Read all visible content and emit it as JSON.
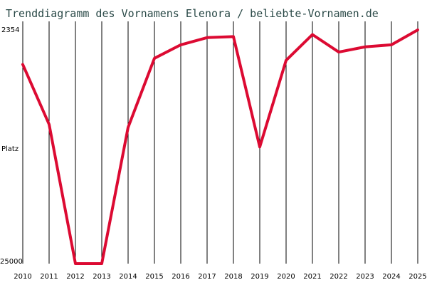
{
  "chart_data": {
    "type": "line",
    "title": "Trenddiagramm des Vornamens Elenora / beliebte-Vornamen.de",
    "ylabel": "Platz",
    "xlabel": "",
    "y_axis": {
      "inverted": true,
      "top_label": "2354",
      "bottom_label": "25000",
      "scale_note": "rank"
    },
    "x": [
      "2010",
      "2011",
      "2012",
      "2013",
      "2014",
      "2015",
      "2016",
      "2017",
      "2018",
      "2019",
      "2020",
      "2021",
      "2022",
      "2023",
      "2024",
      "2025"
    ],
    "series": [
      {
        "values": [
          5700,
          11500,
          25000,
          25000,
          11800,
          5100,
          3800,
          3100,
          3000,
          13700,
          5300,
          2800,
          4500,
          4000,
          3800,
          2354
        ]
      }
    ],
    "ylim": [
      2354,
      25000
    ],
    "grid": "vertical",
    "legend": "none",
    "colors": {
      "line": "#dc0a32",
      "text_title": "#2b4a48"
    }
  }
}
